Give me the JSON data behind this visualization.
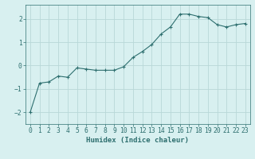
{
  "x": [
    0,
    1,
    2,
    3,
    4,
    5,
    6,
    7,
    8,
    9,
    10,
    11,
    12,
    13,
    14,
    15,
    16,
    17,
    18,
    19,
    20,
    21,
    22,
    23
  ],
  "y": [
    -2.0,
    -0.75,
    -0.7,
    -0.45,
    -0.5,
    -0.1,
    -0.15,
    -0.2,
    -0.2,
    -0.2,
    -0.05,
    0.35,
    0.6,
    0.9,
    1.35,
    1.65,
    2.2,
    2.2,
    2.1,
    2.05,
    1.75,
    1.65,
    1.75,
    1.8
  ],
  "line_color": "#2e6f6f",
  "bg_color": "#d8f0f0",
  "grid_color": "#b8d8d8",
  "xlabel": "Humidex (Indice chaleur)",
  "xlim": [
    -0.5,
    23.5
  ],
  "ylim": [
    -2.5,
    2.6
  ],
  "yticks": [
    -2,
    -1,
    0,
    1,
    2
  ],
  "label_fontsize": 6.5,
  "tick_fontsize": 5.8
}
